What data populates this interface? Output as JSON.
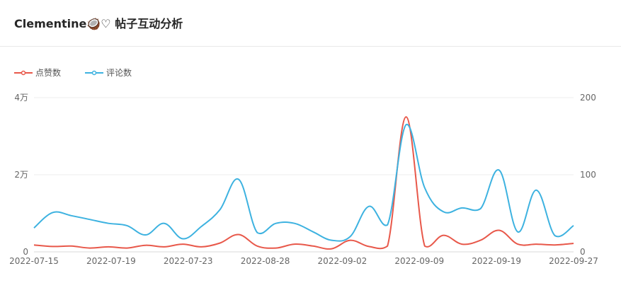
{
  "header": {
    "title": "Clementine🥥♡ 帖子互动分析"
  },
  "chart_data": {
    "type": "line",
    "title": "Clementine🥥♡ 帖子互动分析",
    "legend_position": "top-left",
    "grid": true,
    "x_ticks": [
      "2022-07-15",
      "2022-07-19",
      "2022-07-23",
      "2022-08-28",
      "2022-09-02",
      "2022-09-09",
      "2022-09-19",
      "2022-09-27"
    ],
    "y_left": {
      "ticks": [
        "0",
        "2万",
        "4万"
      ],
      "ylim": [
        0,
        40000
      ]
    },
    "y_right": {
      "ticks": [
        "0",
        "100",
        "200"
      ],
      "ylim": [
        0,
        200
      ]
    },
    "x_index_range": [
      0,
      29
    ],
    "series": [
      {
        "name": "点赞数",
        "color": "#e8584a",
        "axis": "left",
        "x": [
          0,
          1,
          2,
          3,
          4,
          5,
          6,
          7,
          8,
          9,
          10,
          11,
          12,
          13,
          14,
          15,
          16,
          17,
          18,
          19,
          20,
          21,
          22,
          23,
          24,
          25,
          26,
          27,
          28,
          29
        ],
        "values": [
          1800,
          1400,
          1500,
          1000,
          1300,
          1000,
          1700,
          1300,
          2000,
          1300,
          2300,
          4500,
          1500,
          1000,
          2000,
          1500,
          800,
          3000,
          1400,
          1500,
          35000,
          1500,
          4300,
          2000,
          3000,
          5600,
          2000,
          2000,
          1800,
          2200
        ]
      },
      {
        "name": "评论数",
        "color": "#3db2e0",
        "axis": "right",
        "x": [
          0,
          1,
          2,
          3,
          4,
          5,
          6,
          7,
          8,
          9,
          10,
          11,
          12,
          13,
          14,
          15,
          16,
          17,
          18,
          19,
          20,
          21,
          22,
          23,
          24,
          25,
          26,
          27,
          28,
          29
        ],
        "values": [
          31,
          51,
          47,
          42,
          37,
          34,
          22,
          37,
          17,
          33,
          55,
          94,
          25,
          37,
          37,
          26,
          15,
          20,
          59,
          35,
          165,
          83,
          52,
          57,
          56,
          106,
          26,
          80,
          21,
          34
        ]
      }
    ]
  }
}
